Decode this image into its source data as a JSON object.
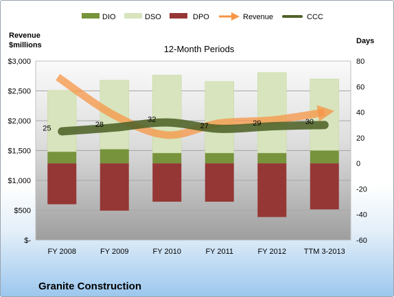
{
  "chart_data": {
    "type": "bar",
    "title": "12-Month Periods",
    "company": "Granite Construction",
    "left_axis_label": [
      "Revenue",
      "$millions"
    ],
    "right_axis_label": "Days",
    "categories": [
      "FY 2008",
      "FY 2009",
      "FY 2010",
      "FY 2011",
      "FY 2012",
      "TTM 3-2013"
    ],
    "left_axis": {
      "min": 0,
      "max": 3000,
      "step": 500,
      "tick_labels": [
        "$-",
        "$500",
        "$1,000",
        "$1,500",
        "$2,000",
        "$2,500",
        "$3,000"
      ]
    },
    "right_axis": {
      "min": -60,
      "max": 80,
      "step": 20,
      "tick_labels": [
        "-60",
        "-40",
        "-20",
        "0",
        "20",
        "40",
        "60",
        "80"
      ]
    },
    "grid": true,
    "legend_position": "top",
    "legend": [
      "DIO",
      "DSO",
      "DPO",
      "Revenue",
      "CCC"
    ],
    "series": [
      {
        "name": "DIO",
        "axis": "right",
        "type": "stacked-bar",
        "values": [
          9,
          11,
          8,
          8,
          8,
          10
        ]
      },
      {
        "name": "DSO",
        "axis": "right",
        "type": "stacked-bar",
        "values": [
          48,
          54,
          61,
          56,
          63,
          56
        ]
      },
      {
        "name": "DPO",
        "axis": "right",
        "type": "stacked-bar",
        "values": [
          -32,
          -37,
          -30,
          -30,
          -42,
          -36
        ]
      },
      {
        "name": "Revenue",
        "axis": "left",
        "type": "arrow-line",
        "values": [
          2730,
          2090,
          1760,
          1960,
          2010,
          2140
        ]
      },
      {
        "name": "CCC",
        "axis": "right",
        "type": "line",
        "values": [
          25,
          28,
          32,
          27,
          29,
          30
        ]
      }
    ],
    "ccc_labels": [
      "25",
      "28",
      "32",
      "27",
      "29",
      "30"
    ],
    "colors": {
      "DIO": "#77933c",
      "DSO": "#d7e4bd",
      "DPO": "#953735",
      "Revenue": "#f79646",
      "CCC": "#4f6228"
    }
  }
}
